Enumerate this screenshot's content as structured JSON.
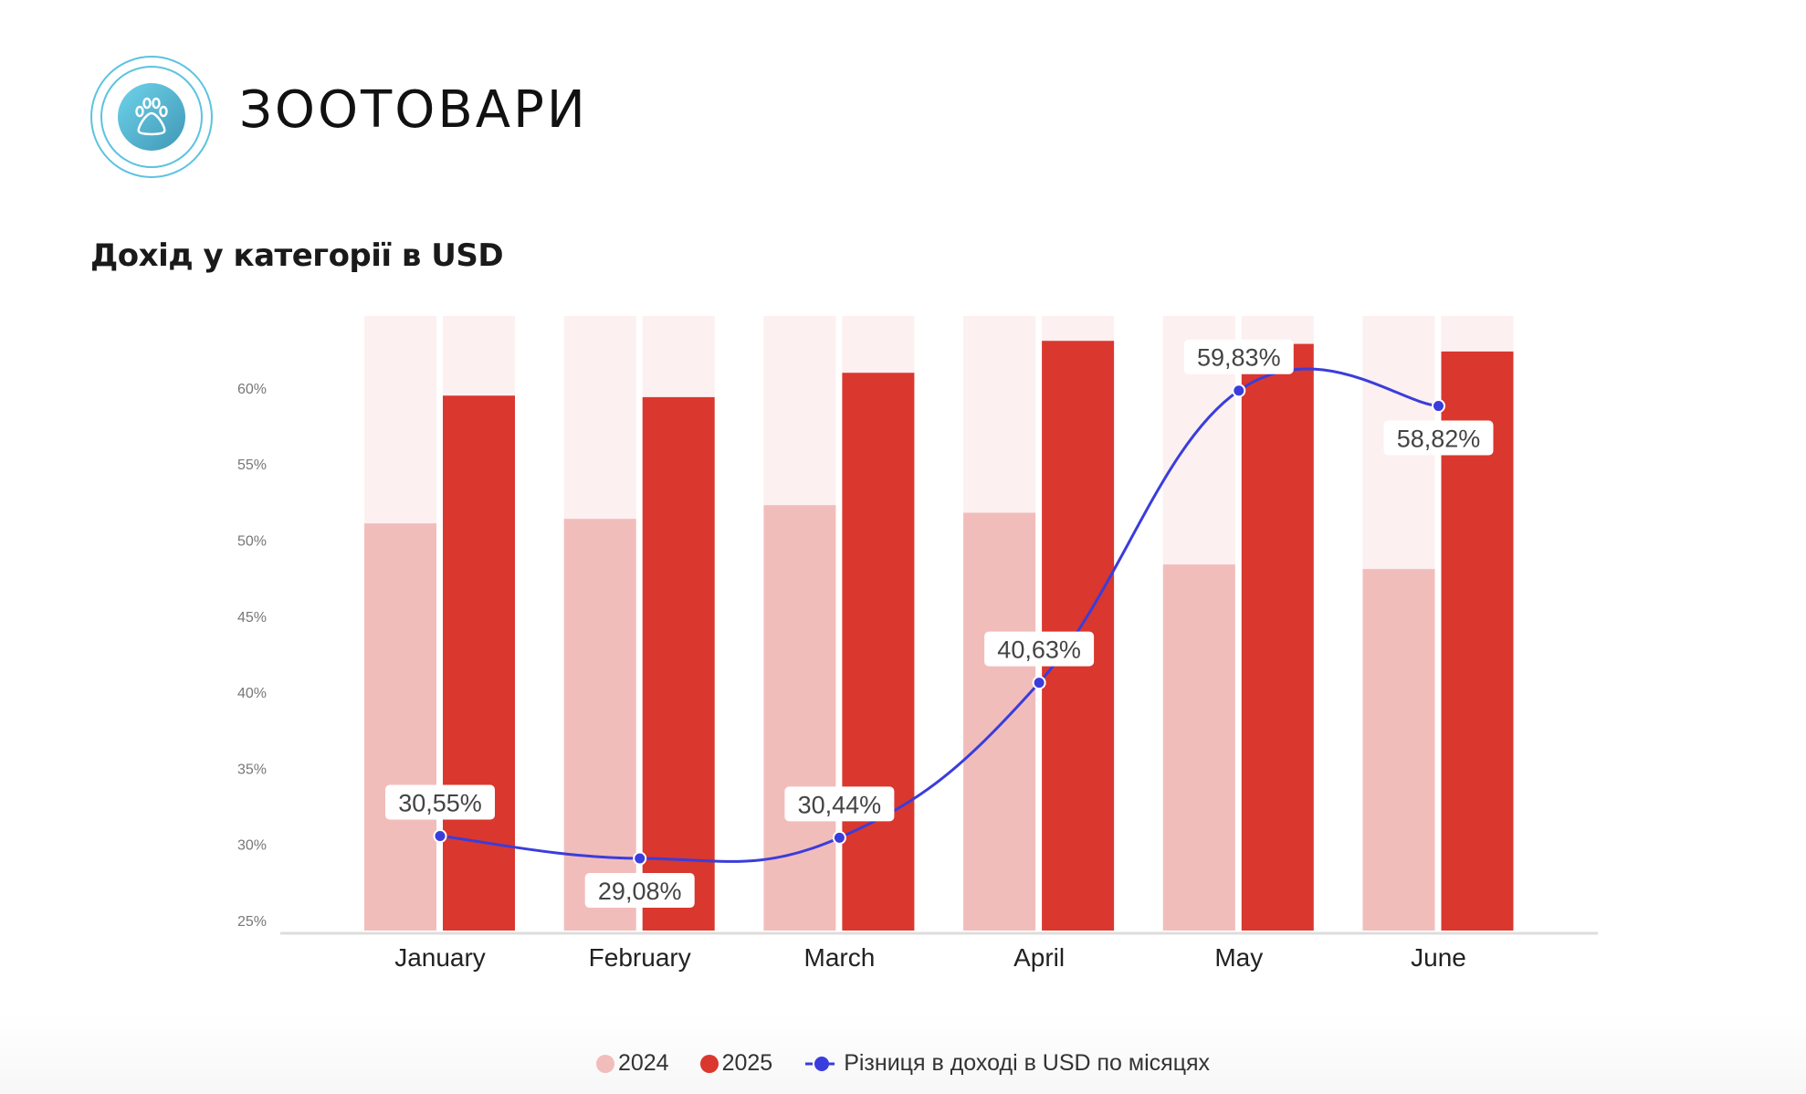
{
  "header": {
    "brand": "ЗООТОВАРИ",
    "logo_icon": "paw-icon"
  },
  "colors": {
    "c2024": "#f1bdbb",
    "c2025": "#da372e",
    "bg_bar": "#fcf0f0",
    "line": "#3a3ddb",
    "logo": "#4fb8d6"
  },
  "chart_data": {
    "type": "bar",
    "title": "Дохід у категорії в USD",
    "xlabel": "",
    "ylabel": "",
    "categories": [
      "January",
      "February",
      "March",
      "April",
      "May",
      "June"
    ],
    "ylim": [
      25,
      65
    ],
    "yticks": [
      25,
      30,
      35,
      40,
      45,
      50,
      55,
      60
    ],
    "ytick_labels": [
      "25%",
      "30%",
      "35%",
      "40%",
      "45%",
      "50%",
      "55%",
      "60%"
    ],
    "grid": false,
    "legend_position": "bottom",
    "series": [
      {
        "name": "2024",
        "type": "bar",
        "values": [
          51.1,
          51.4,
          52.3,
          51.8,
          48.4,
          48.1
        ]
      },
      {
        "name": "2025",
        "type": "bar",
        "values": [
          59.5,
          59.4,
          61.0,
          63.1,
          62.9,
          62.4
        ]
      },
      {
        "name": "Різниця в доході в USD по місяцях",
        "type": "line",
        "values": [
          30.55,
          29.08,
          30.44,
          40.63,
          59.83,
          58.82
        ],
        "labels": [
          "30,55%",
          "29,08%",
          "30,44%",
          "40,63%",
          "59,83%",
          "58,82%"
        ]
      }
    ]
  }
}
